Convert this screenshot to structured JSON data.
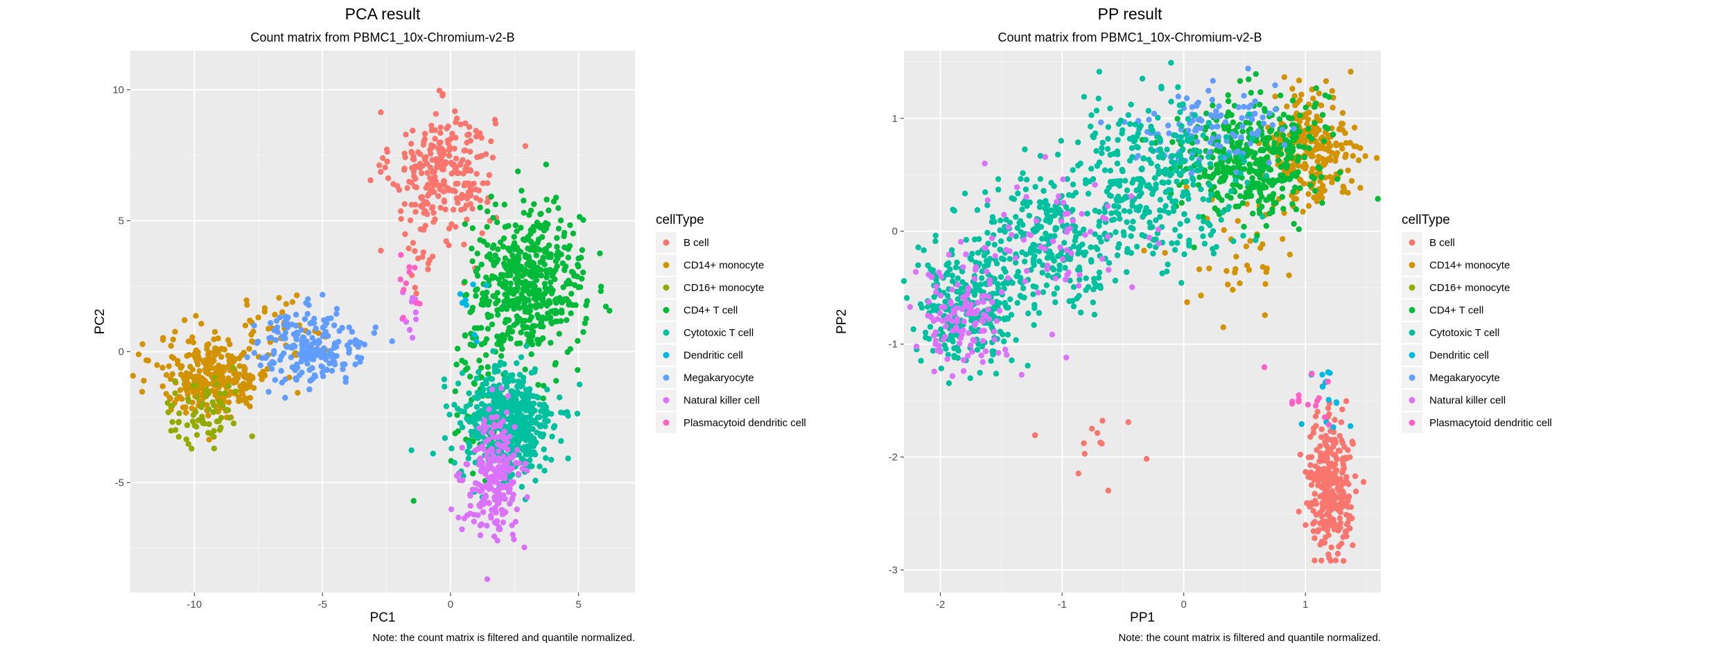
{
  "palette": {
    "B cell": "#F8766D",
    "CD14+ monocyte": "#D39200",
    "CD16+ monocyte": "#93AA00",
    "CD4+ T cell": "#00BA38",
    "Cytotoxic T cell": "#00C19F",
    "Dendritic cell": "#00B9E3",
    "Megakaryocyte": "#619CFF",
    "Natural killer cell": "#DB72FB",
    "Plasmacytoid dendritic cell": "#FF61C3"
  },
  "chart_data": [
    {
      "type": "scatter",
      "title": "PCA result",
      "subtitle": "Count matrix from PBMC1_10x-Chromium-v2-B",
      "xlabel": "PC1",
      "ylabel": "PC2",
      "xlim": [
        -12.5,
        7.2
      ],
      "ylim": [
        -9.2,
        11.5
      ],
      "xticks": [
        -10,
        -5,
        0,
        5
      ],
      "yticks": [
        -5,
        0,
        5,
        10
      ],
      "tick_labels_x": [
        "-10",
        "-5",
        "0",
        "5"
      ],
      "tick_labels_y": [
        "-5",
        "0",
        "5",
        "10"
      ],
      "grid": true,
      "legend_title": "cellType",
      "legend_position": "right",
      "legend_entries": [
        "B cell",
        "CD14+ monocyte",
        "CD16+ monocyte",
        "CD4+ T cell",
        "Cytotoxic T cell",
        "Dendritic cell",
        "Megakaryocyte",
        "Natural killer cell",
        "Plasmacytoid dendritic cell"
      ],
      "caption": "Note: the count matrix is filtered and quantile normalized.",
      "clusters": [
        {
          "name": "B cell",
          "n": 260,
          "cx": -0.3,
          "cy": 7.0,
          "sx": 1.0,
          "sy": 1.1
        },
        {
          "name": "B cell",
          "n": 30,
          "cx": -0.8,
          "cy": 4.2,
          "sx": 0.8,
          "sy": 1.0
        },
        {
          "name": "CD14+ monocyte",
          "n": 300,
          "cx": -9.2,
          "cy": -0.9,
          "sx": 1.1,
          "sy": 0.75
        },
        {
          "name": "CD14+ monocyte",
          "n": 40,
          "cx": -6.8,
          "cy": 1.0,
          "sx": 0.9,
          "sy": 0.6
        },
        {
          "name": "CD16+ monocyte",
          "n": 70,
          "cx": -9.6,
          "cy": -2.4,
          "sx": 0.8,
          "sy": 0.7
        },
        {
          "name": "Megakaryocyte",
          "n": 200,
          "cx": -5.4,
          "cy": 0.2,
          "sx": 1.1,
          "sy": 0.7
        },
        {
          "name": "CD4+ T cell",
          "n": 520,
          "cx": 3.0,
          "cy": 2.5,
          "sx": 1.1,
          "sy": 1.4
        },
        {
          "name": "CD4+ T cell",
          "n": 60,
          "cx": 1.3,
          "cy": -1.5,
          "sx": 0.7,
          "sy": 1.5
        },
        {
          "name": "Cytotoxic T cell",
          "n": 520,
          "cx": 2.2,
          "cy": -2.8,
          "sx": 0.9,
          "sy": 1.1
        },
        {
          "name": "Natural killer cell",
          "n": 230,
          "cx": 1.7,
          "cy": -4.8,
          "sx": 0.55,
          "sy": 1.2
        },
        {
          "name": "Natural killer cell",
          "n": 10,
          "cx": -1.5,
          "cy": 1.5,
          "sx": 0.3,
          "sy": 0.8
        },
        {
          "name": "Dendritic cell",
          "n": 8,
          "cx": 0.8,
          "cy": 2.0,
          "sx": 0.5,
          "sy": 0.8
        },
        {
          "name": "Plasmacytoid dendritic cell",
          "n": 10,
          "cx": -1.6,
          "cy": 2.4,
          "sx": 0.35,
          "sy": 0.6
        }
      ]
    },
    {
      "type": "scatter",
      "title": "PP result",
      "subtitle": "Count matrix from PBMC1_10x-Chromium-v2-B",
      "xlabel": "PP1",
      "ylabel": "PP2",
      "xlim": [
        -2.3,
        1.62
      ],
      "ylim": [
        -3.2,
        1.6
      ],
      "xticks": [
        -2,
        -1,
        0,
        1
      ],
      "yticks": [
        -3,
        -2,
        -1,
        0,
        1
      ],
      "tick_labels_x": [
        "-2",
        "-1",
        "0",
        "1"
      ],
      "tick_labels_y": [
        "-3",
        "-2",
        "-1",
        "0",
        "1"
      ],
      "grid": true,
      "legend_title": "cellType",
      "legend_position": "right",
      "legend_entries": [
        "B cell",
        "CD14+ monocyte",
        "CD16+ monocyte",
        "CD4+ T cell",
        "Cytotoxic T cell",
        "Dendritic cell",
        "Megakaryocyte",
        "Natural killer cell",
        "Plasmacytoid dendritic cell"
      ],
      "caption": "Note: the count matrix is filtered and quantile normalized.",
      "clusters": [
        {
          "name": "CD14+ monocyte",
          "n": 260,
          "cx": 1.05,
          "cy": 0.75,
          "sx": 0.17,
          "sy": 0.24
        },
        {
          "name": "CD14+ monocyte",
          "n": 40,
          "cx": 0.5,
          "cy": -0.2,
          "sx": 0.25,
          "sy": 0.3
        },
        {
          "name": "CD4+ T cell",
          "n": 420,
          "cx": 0.55,
          "cy": 0.65,
          "sx": 0.28,
          "sy": 0.27
        },
        {
          "name": "Megakaryocyte",
          "n": 110,
          "cx": 0.15,
          "cy": 0.9,
          "sx": 0.3,
          "sy": 0.18
        },
        {
          "name": "Cytotoxic T cell",
          "n": 300,
          "cx": -1.75,
          "cy": -0.65,
          "sx": 0.22,
          "sy": 0.25
        },
        {
          "name": "Cytotoxic T cell",
          "n": 260,
          "cx": -1.1,
          "cy": -0.05,
          "sx": 0.28,
          "sy": 0.28
        },
        {
          "name": "Cytotoxic T cell",
          "n": 330,
          "cx": -0.25,
          "cy": 0.45,
          "sx": 0.35,
          "sy": 0.35
        },
        {
          "name": "Natural killer cell",
          "n": 120,
          "cx": -1.8,
          "cy": -0.75,
          "sx": 0.2,
          "sy": 0.25
        },
        {
          "name": "Natural killer cell",
          "n": 70,
          "cx": -1.1,
          "cy": -0.1,
          "sx": 0.35,
          "sy": 0.3
        },
        {
          "name": "B cell",
          "n": 300,
          "cx": 1.2,
          "cy": -2.25,
          "sx": 0.09,
          "sy": 0.28
        },
        {
          "name": "B cell",
          "n": 12,
          "cx": -0.6,
          "cy": -1.9,
          "sx": 0.35,
          "sy": 0.2
        },
        {
          "name": "Dendritic cell",
          "n": 15,
          "cx": 1.2,
          "cy": -1.45,
          "sx": 0.1,
          "sy": 0.15
        },
        {
          "name": "Plasmacytoid dendritic cell",
          "n": 14,
          "cx": 1.05,
          "cy": -1.5,
          "sx": 0.13,
          "sy": 0.12
        }
      ]
    }
  ]
}
